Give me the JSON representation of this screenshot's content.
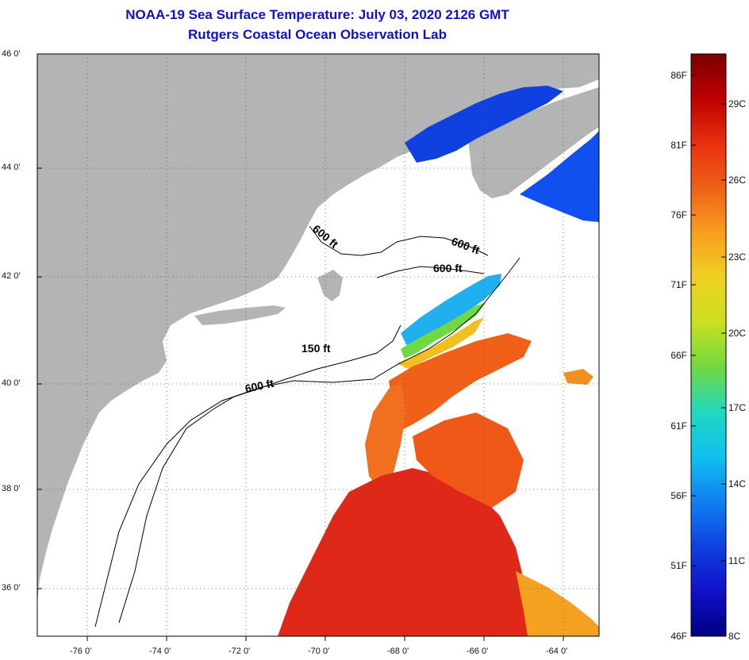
{
  "title": "NOAA-19 Sea Surface Temperature:  July 03, 2020 2126 GMT",
  "subtitle": "Rutgers Coastal Ocean Observation Lab",
  "axes": {
    "lat_labels": [
      "46 0'",
      "44 0'",
      "42 0'",
      "40 0'",
      "38 0'",
      "36 0'"
    ],
    "lon_labels": [
      "-76 0'",
      "-74 0'",
      "-72 0'",
      "-70 0'",
      "-68 0'",
      "-66 0'",
      "-64 0'"
    ]
  },
  "contours": {
    "label_600_a": "600 ft",
    "label_600_b": "600 ft",
    "label_600_c": "600 ft",
    "label_150": "150 ft",
    "label_600_d": "600 ft"
  },
  "colorbar": {
    "fahrenheit_labels": [
      "86F",
      "81F",
      "76F",
      "71F",
      "66F",
      "61F",
      "56F",
      "51F",
      "46F"
    ],
    "celsius_labels": [
      "29C",
      "26C",
      "23C",
      "20C",
      "17C",
      "14C",
      "11C",
      "8C"
    ],
    "gradient_colors": [
      "#7a0000",
      "#c00000",
      "#e83010",
      "#f06018",
      "#f8a020",
      "#f0d020",
      "#c8e020",
      "#70d840",
      "#20d8c0",
      "#10c0f0",
      "#1080f0",
      "#1040e0",
      "#1010c8",
      "#000080"
    ]
  },
  "colors": {
    "land": "#b4b4b4",
    "title": "#1010c8",
    "warm": "#e83818",
    "cool": "#1040e0"
  }
}
